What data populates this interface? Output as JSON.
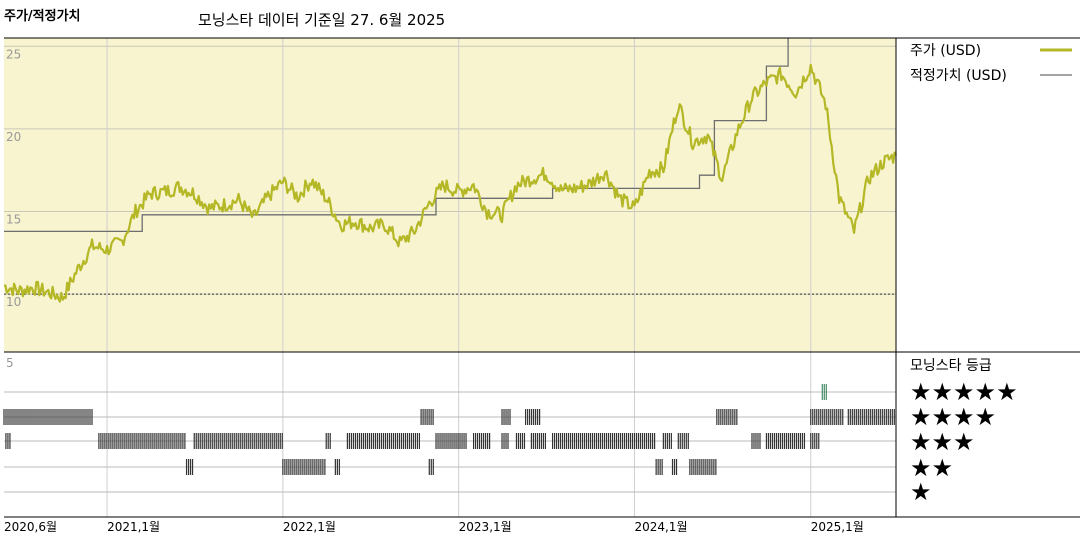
{
  "chart_data": {
    "type": "line",
    "title": "주가/적정가치",
    "subtitle": "모닝스타 데이터 기준일 27. 6월 2025",
    "colors": {
      "price": "#b5b826",
      "fair_value": "#6e6e6e",
      "upper_panel_bg": "#f8f4d0",
      "rating_bar": "#333333",
      "rating_highlight": "#4a8c6a"
    },
    "y_ticks": [
      "25",
      "20",
      "15",
      "10"
    ],
    "ylim": [
      6.5,
      25.5
    ],
    "x_ticks": [
      "2020,6월",
      "2021,1월",
      "2022,1월",
      "2023,1월",
      "2024,1월",
      "2025,1월"
    ],
    "x_range": [
      "2020-06-01",
      "2025-06-27"
    ],
    "grid": true,
    "series": [
      {
        "name": "주가 (USD)",
        "points": [
          [
            "2020-06-01",
            10.5
          ],
          [
            "2020-07-01",
            10.2
          ],
          [
            "2020-08-01",
            10.4
          ],
          [
            "2020-09-01",
            10.1
          ],
          [
            "2020-10-01",
            9.8
          ],
          [
            "2020-11-01",
            11.5
          ],
          [
            "2020-12-01",
            12.9
          ],
          [
            "2021-01-01",
            12.7
          ],
          [
            "2021-02-01",
            13.2
          ],
          [
            "2021-03-01",
            15.0
          ],
          [
            "2021-04-01",
            16.1
          ],
          [
            "2021-05-01",
            16.2
          ],
          [
            "2021-06-01",
            16.5
          ],
          [
            "2021-07-01",
            16.1
          ],
          [
            "2021-08-01",
            15.2
          ],
          [
            "2021-09-01",
            15.4
          ],
          [
            "2021-10-01",
            15.7
          ],
          [
            "2021-11-01",
            14.6
          ],
          [
            "2021-12-01",
            15.9
          ],
          [
            "2022-01-01",
            16.8
          ],
          [
            "2022-02-01",
            15.9
          ],
          [
            "2022-03-01",
            16.9
          ],
          [
            "2022-04-01",
            15.8
          ],
          [
            "2022-05-01",
            14.2
          ],
          [
            "2022-06-01",
            14.4
          ],
          [
            "2022-07-01",
            14.0
          ],
          [
            "2022-08-01",
            14.2
          ],
          [
            "2022-09-01",
            13.1
          ],
          [
            "2022-10-01",
            13.8
          ],
          [
            "2022-11-01",
            15.5
          ],
          [
            "2022-12-01",
            16.6
          ],
          [
            "2023-01-01",
            16.2
          ],
          [
            "2023-02-01",
            16.6
          ],
          [
            "2023-03-01",
            15.0
          ],
          [
            "2023-04-01",
            14.8
          ],
          [
            "2023-05-01",
            16.6
          ],
          [
            "2023-06-01",
            17.0
          ],
          [
            "2023-07-01",
            17.3
          ],
          [
            "2023-08-01",
            16.3
          ],
          [
            "2023-09-01",
            16.4
          ],
          [
            "2023-10-01",
            16.7
          ],
          [
            "2023-11-01",
            17.4
          ],
          [
            "2023-12-01",
            15.8
          ],
          [
            "2024-01-01",
            15.2
          ],
          [
            "2024-02-01",
            17.4
          ],
          [
            "2024-03-01",
            17.6
          ],
          [
            "2024-04-01",
            21.5
          ],
          [
            "2024-05-01",
            19.2
          ],
          [
            "2024-06-01",
            19.6
          ],
          [
            "2024-07-01",
            17.0
          ],
          [
            "2024-08-01",
            19.8
          ],
          [
            "2024-09-01",
            21.9
          ],
          [
            "2024-10-01",
            22.8
          ],
          [
            "2024-11-01",
            23.3
          ],
          [
            "2024-12-01",
            22.2
          ],
          [
            "2025-01-01",
            23.8
          ],
          [
            "2025-02-01",
            21.5
          ],
          [
            "2025-03-01",
            15.8
          ],
          [
            "2025-04-01",
            13.8
          ],
          [
            "2025-05-01",
            17.0
          ],
          [
            "2025-06-01",
            18.0
          ],
          [
            "2025-06-27",
            18.4
          ]
        ]
      },
      {
        "name": "적정가치 (USD)",
        "points": [
          [
            "2020-06-01",
            13.8
          ],
          [
            "2021-03-15",
            13.8
          ],
          [
            "2021-03-15",
            14.8
          ],
          [
            "2022-11-15",
            14.8
          ],
          [
            "2022-11-15",
            15.8
          ],
          [
            "2023-07-15",
            15.8
          ],
          [
            "2023-07-15",
            16.4
          ],
          [
            "2024-05-15",
            16.4
          ],
          [
            "2024-05-15",
            17.2
          ],
          [
            "2024-06-15",
            17.2
          ],
          [
            "2024-06-15",
            20.5
          ],
          [
            "2024-10-01",
            20.5
          ],
          [
            "2024-10-01",
            23.8
          ],
          [
            "2024-11-15",
            23.8
          ],
          [
            "2024-11-15",
            25.5
          ]
        ]
      }
    ],
    "rating_panel_title": "모닝스타 등급",
    "rating_panel_tick": "5",
    "rating_labels": [
      "★★★★★",
      "★★★★",
      "★★★",
      "★★",
      "★"
    ],
    "ratings": [
      {
        "stars": 5,
        "from": "2025-01-25",
        "to": "2025-02-05"
      },
      {
        "stars": 4,
        "from": "2020-06-01",
        "to": "2020-12-01"
      },
      {
        "stars": 4,
        "from": "2022-10-15",
        "to": "2022-11-10"
      },
      {
        "stars": 4,
        "from": "2023-04-01",
        "to": "2023-04-20"
      },
      {
        "stars": 4,
        "from": "2023-05-20",
        "to": "2023-06-20"
      },
      {
        "stars": 4,
        "from": "2024-06-20",
        "to": "2024-08-01"
      },
      {
        "stars": 4,
        "from": "2025-01-01",
        "to": "2025-03-10"
      },
      {
        "stars": 4,
        "from": "2025-03-20",
        "to": "2025-06-27"
      },
      {
        "stars": 3,
        "from": "2020-06-05",
        "to": "2020-06-15"
      },
      {
        "stars": 3,
        "from": "2020-12-15",
        "to": "2021-06-15"
      },
      {
        "stars": 3,
        "from": "2021-07-01",
        "to": "2021-12-31"
      },
      {
        "stars": 3,
        "from": "2022-04-01",
        "to": "2022-04-10"
      },
      {
        "stars": 3,
        "from": "2022-05-15",
        "to": "2022-10-15"
      },
      {
        "stars": 3,
        "from": "2022-11-15",
        "to": "2023-01-20"
      },
      {
        "stars": 3,
        "from": "2023-02-01",
        "to": "2023-03-10"
      },
      {
        "stars": 3,
        "from": "2023-04-01",
        "to": "2023-04-15"
      },
      {
        "stars": 3,
        "from": "2023-05-01",
        "to": "2023-05-20"
      },
      {
        "stars": 3,
        "from": "2023-06-01",
        "to": "2023-07-01"
      },
      {
        "stars": 3,
        "from": "2023-07-15",
        "to": "2024-02-15"
      },
      {
        "stars": 3,
        "from": "2024-03-01",
        "to": "2024-03-20"
      },
      {
        "stars": 3,
        "from": "2024-04-01",
        "to": "2024-04-25"
      },
      {
        "stars": 3,
        "from": "2024-09-01",
        "to": "2024-09-20"
      },
      {
        "stars": 3,
        "from": "2024-10-01",
        "to": "2024-12-20"
      },
      {
        "stars": 3,
        "from": "2025-01-01",
        "to": "2025-01-20"
      },
      {
        "stars": 2,
        "from": "2021-06-15",
        "to": "2021-07-01"
      },
      {
        "stars": 2,
        "from": "2022-01-01",
        "to": "2022-04-01"
      },
      {
        "stars": 2,
        "from": "2022-04-20",
        "to": "2022-05-01"
      },
      {
        "stars": 2,
        "from": "2022-11-01",
        "to": "2022-11-10"
      },
      {
        "stars": 2,
        "from": "2024-02-15",
        "to": "2024-03-01"
      },
      {
        "stars": 2,
        "from": "2024-03-20",
        "to": "2024-04-01"
      },
      {
        "stars": 2,
        "from": "2024-04-25",
        "to": "2024-06-20"
      }
    ]
  }
}
